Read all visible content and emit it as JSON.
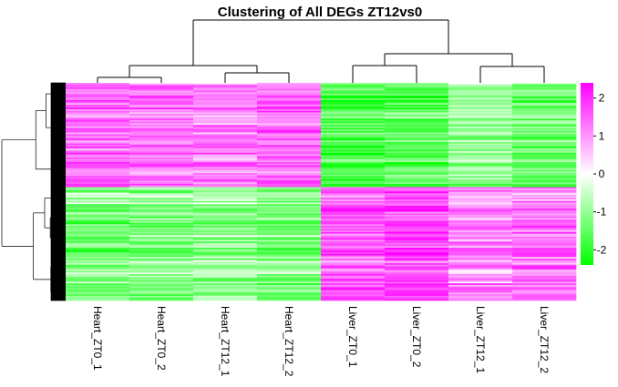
{
  "chart_data": {
    "type": "heatmap",
    "title": "Clustering of All DEGs ZT12vs0",
    "columns": [
      "Heart_ZT0_1",
      "Heart_ZT0_2",
      "Heart_ZT12_1",
      "Heart_ZT12_2",
      "Liver_ZT0_1",
      "Liver_ZT0_2",
      "Liver_ZT12_1",
      "Liver_ZT12_2"
    ],
    "color_scale": {
      "range": [
        -2.4,
        2.4
      ],
      "low_color": "#00ff00",
      "mid_color": "#ffffff",
      "high_color": "#ff00ff",
      "ticks": [
        "-2",
        "-1",
        "0",
        "1",
        "2"
      ]
    },
    "row_blocks": [
      {
        "fraction": 0.475,
        "values": [
          1.3,
          1.2,
          1.1,
          1.3,
          -1.6,
          -1.5,
          -0.9,
          -1.3
        ]
      },
      {
        "fraction": 0.525,
        "values": [
          -1.2,
          -1.1,
          -1.0,
          -1.2,
          1.5,
          1.7,
          1.1,
          1.3
        ]
      }
    ],
    "column_dendrogram": "((Heart_ZT0_1, Heart_ZT0_2), (Heart_ZT12_1, Heart_ZT12_2)), ((Liver_ZT0_1, Liver_ZT0_2), (Liver_ZT12_1, Liver_ZT12_2))",
    "row_dendrogram": "two main clusters (up in Heart / up in Liver)"
  }
}
